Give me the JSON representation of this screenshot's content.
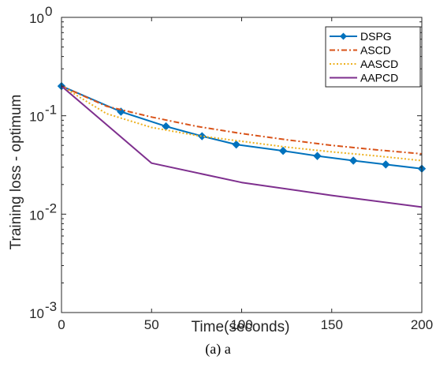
{
  "chart_data": {
    "type": "line",
    "xlabel": "Time(seconds)",
    "ylabel": "Training loss - optimum",
    "xlim": [
      0,
      200
    ],
    "ylim": [
      0.001,
      1
    ],
    "yscale": "log",
    "x_ticks": [
      0,
      50,
      100,
      150,
      200
    ],
    "y_ticks": [
      {
        "value": 0.001,
        "base": "10",
        "exp": "-3"
      },
      {
        "value": 0.01,
        "base": "10",
        "exp": "-2"
      },
      {
        "value": 0.1,
        "base": "10",
        "exp": "-1"
      },
      {
        "value": 1,
        "base": "10",
        "exp": "0"
      }
    ],
    "grid": false,
    "legend_position": "top-right",
    "series": [
      {
        "name": "DSPG",
        "color": "#0072BD",
        "style": "solid",
        "marker": "diamond",
        "x": [
          0,
          33,
          58,
          78,
          97,
          123,
          142,
          162,
          180,
          200
        ],
        "y": [
          0.2,
          0.11,
          0.078,
          0.062,
          0.051,
          0.044,
          0.039,
          0.035,
          0.032,
          0.029
        ]
      },
      {
        "name": "ASCD",
        "color": "#D95319",
        "style": "dashdot",
        "marker": "none",
        "x": [
          0,
          25,
          50,
          75,
          100,
          125,
          150,
          175,
          200
        ],
        "y": [
          0.2,
          0.125,
          0.097,
          0.078,
          0.066,
          0.057,
          0.05,
          0.045,
          0.041
        ]
      },
      {
        "name": "AASCD",
        "color": "#EDB120",
        "style": "dotted",
        "marker": "none",
        "x": [
          0,
          25,
          50,
          75,
          100,
          125,
          150,
          175,
          200
        ],
        "y": [
          0.2,
          0.105,
          0.076,
          0.063,
          0.055,
          0.048,
          0.043,
          0.039,
          0.035
        ]
      },
      {
        "name": "AAPCD",
        "color": "#7E2F8E",
        "style": "solid",
        "marker": "none",
        "x": [
          0,
          50,
          100,
          150,
          200
        ],
        "y": [
          0.2,
          0.033,
          0.021,
          0.0155,
          0.0118
        ]
      }
    ]
  },
  "caption": "(a) a"
}
